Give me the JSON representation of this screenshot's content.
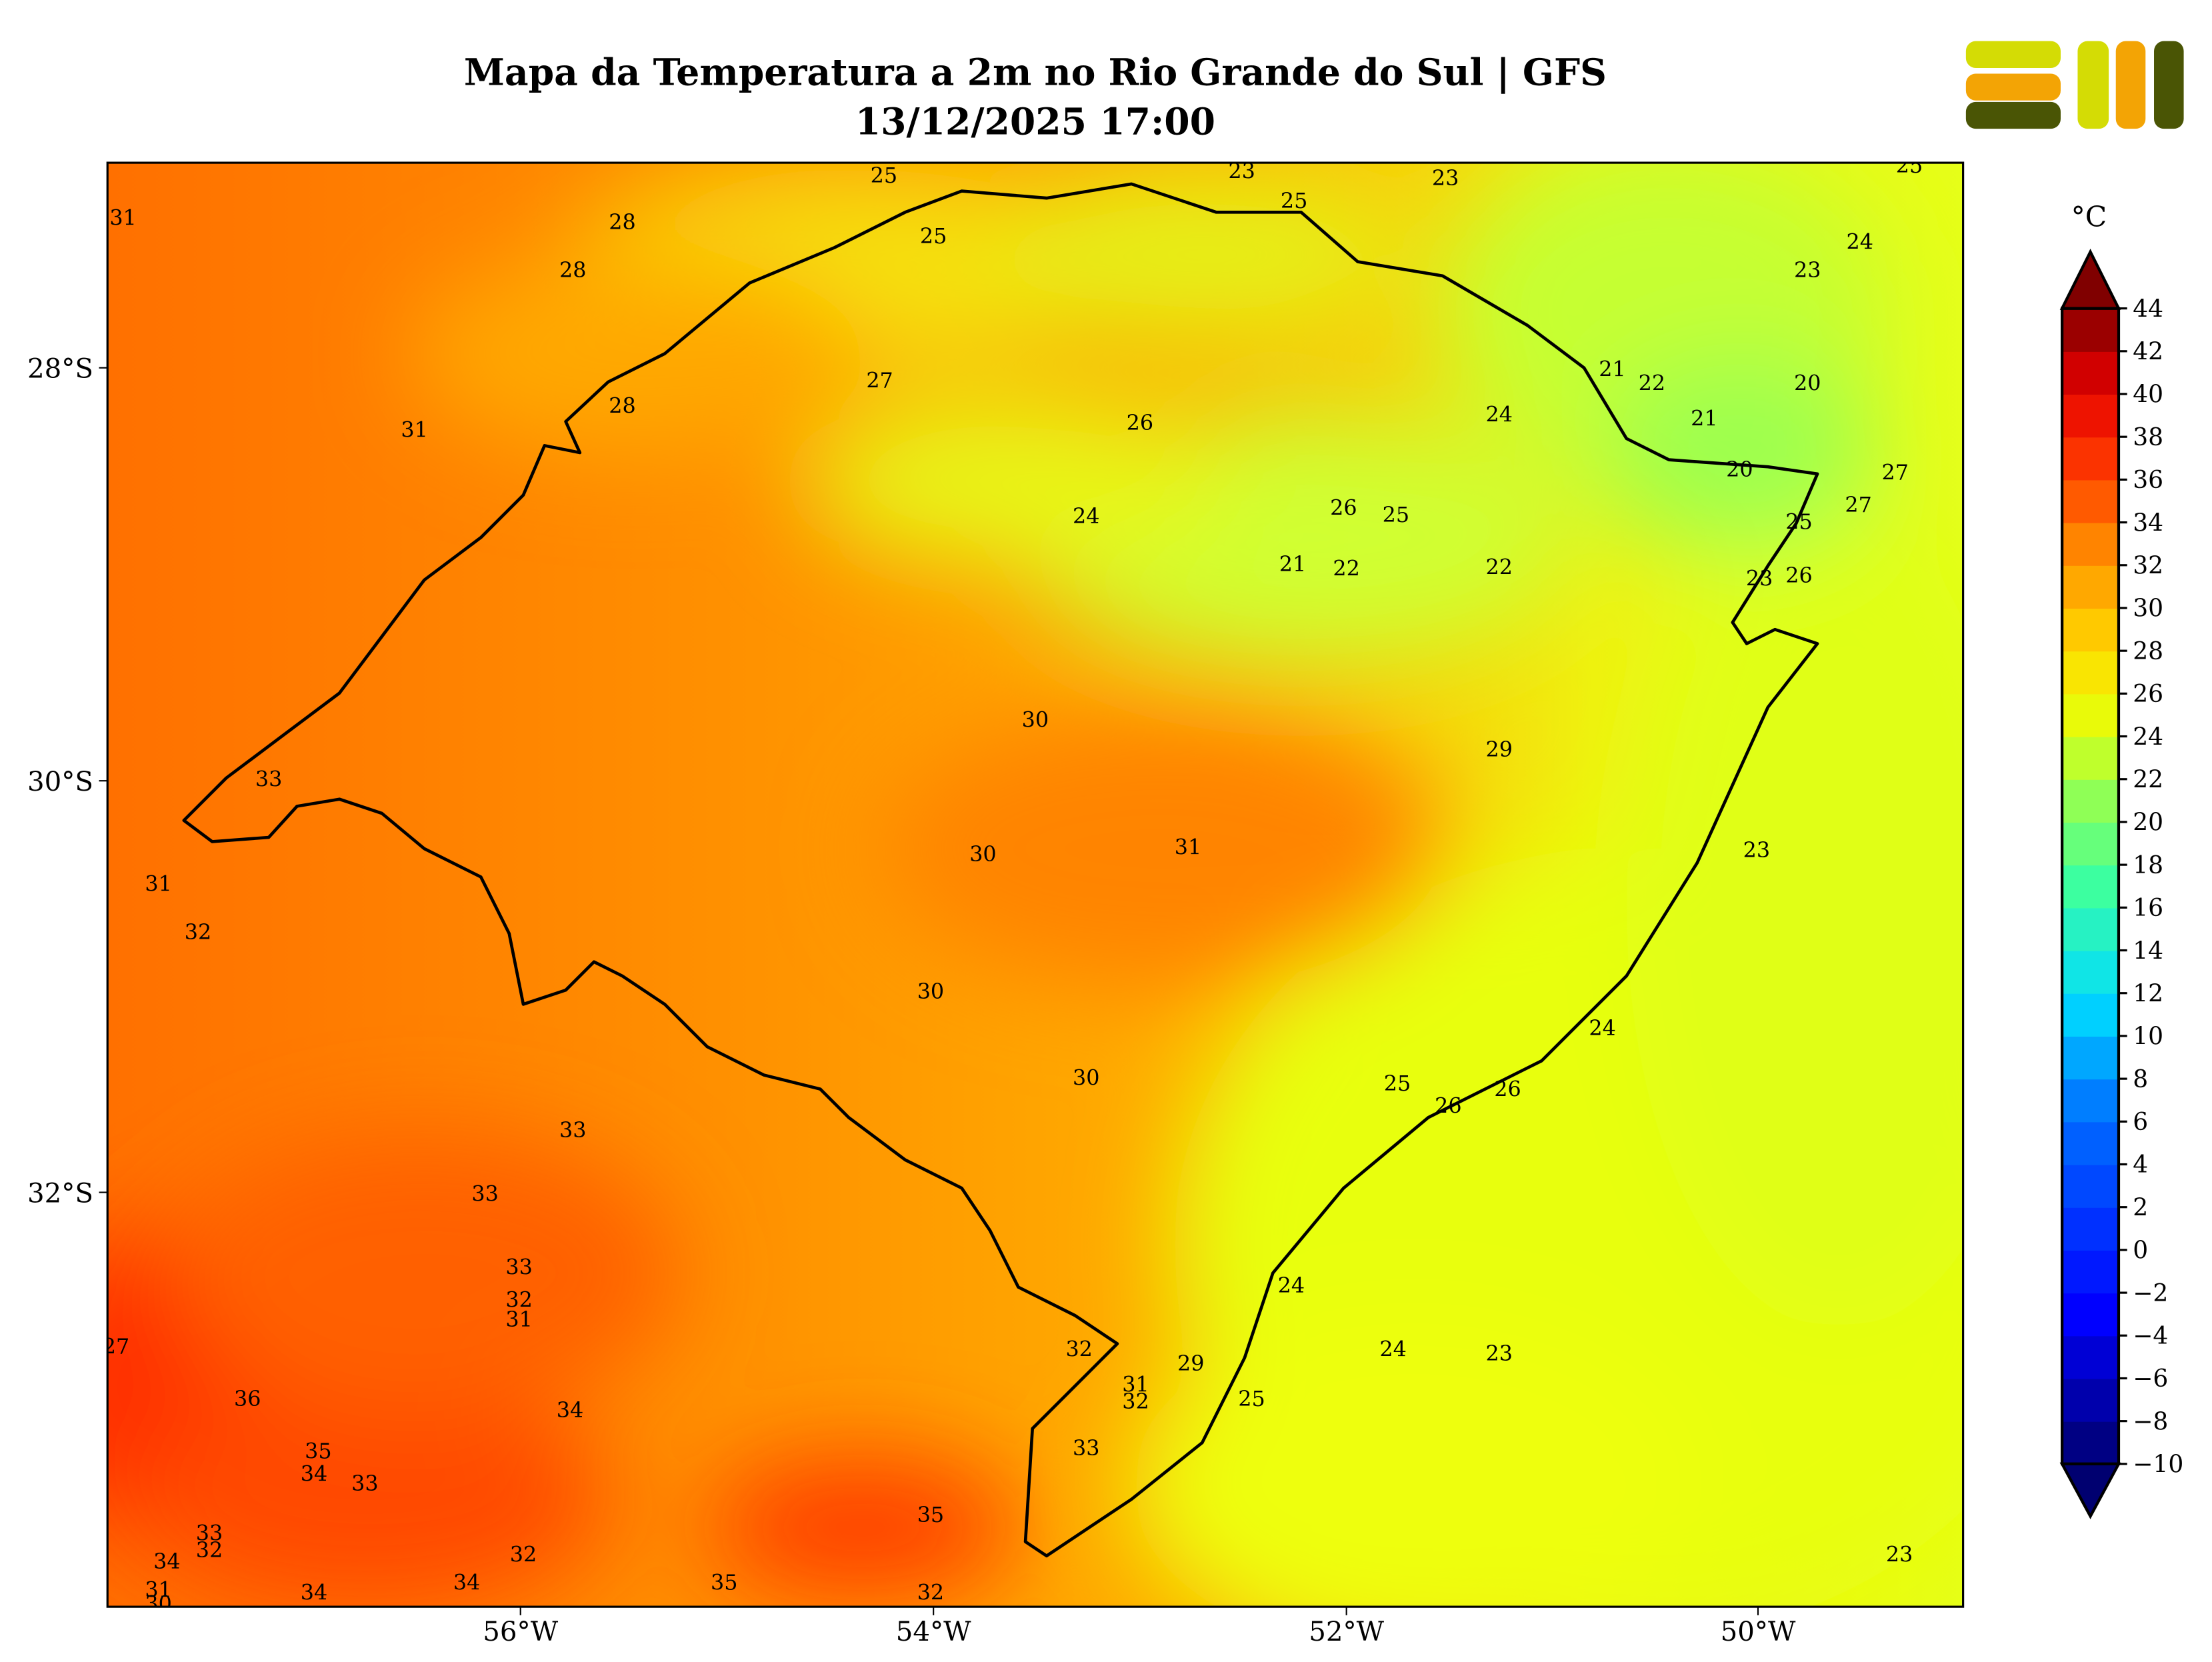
{
  "title": {
    "line1": "Mapa da Temperatura a 2m no Rio Grande do Sul | GFS",
    "line2": "13/12/2025 17:00"
  },
  "axes": {
    "lat_labels": [
      "28°S",
      "30°S",
      "32°S"
    ],
    "lon_labels": [
      "56°W",
      "54°W",
      "52°W",
      "50°W"
    ]
  },
  "colorbar": {
    "unit": "°C",
    "min": -10,
    "max": 44,
    "step": 2,
    "tick_labels": [
      "44",
      "42",
      "40",
      "38",
      "36",
      "34",
      "32",
      "30",
      "28",
      "26",
      "24",
      "22",
      "20",
      "18",
      "16",
      "14",
      "12",
      "10",
      "8",
      "6",
      "4",
      "2",
      "0",
      "−2",
      "−4",
      "−6",
      "−8",
      "−10"
    ]
  },
  "contour_labels": [
    "31",
    "28",
    "28",
    "25",
    "25",
    "23",
    "25",
    "23",
    "25",
    "24",
    "23",
    "27",
    "28",
    "31",
    "26",
    "21",
    "22",
    "21",
    "20",
    "24",
    "20",
    "27",
    "27",
    "24",
    "26",
    "25",
    "25",
    "21",
    "22",
    "22",
    "23",
    "26",
    "30",
    "29",
    "33",
    "31",
    "30",
    "23",
    "31",
    "32",
    "30",
    "24",
    "30",
    "25",
    "26",
    "26",
    "33",
    "33",
    "33",
    "32",
    "31",
    "24",
    "27",
    "32",
    "29",
    "24",
    "23",
    "31",
    "32",
    "36",
    "34",
    "25",
    "35",
    "34",
    "33",
    "33",
    "35",
    "33",
    "32",
    "34",
    "32",
    "31",
    "30",
    "34",
    "34",
    "35",
    "32",
    "23"
  ],
  "colors": {
    "hot": "#ff3a00",
    "warm": "#ff9a00",
    "mild": "#e8ff10",
    "cool": "#9cff50"
  }
}
